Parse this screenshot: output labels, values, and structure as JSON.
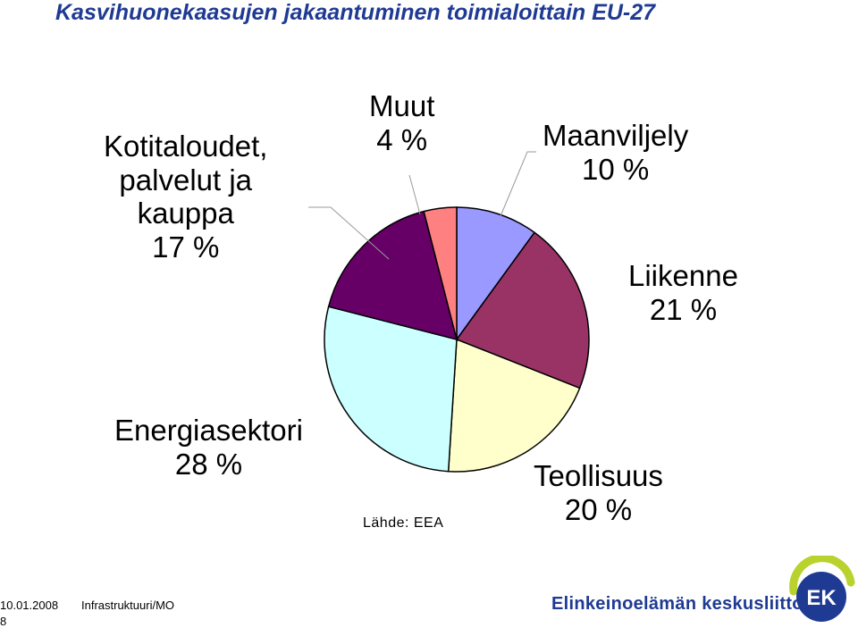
{
  "title": "Kasvihuonekaasujen jakaantuminen toimialoittain EU-27",
  "source": "Lähde: EEA",
  "footer": {
    "date": "10.01.2008",
    "department": "Infrastruktuuri/MO",
    "page": "8",
    "organization": "Elinkeinoelämän keskusliitto",
    "logo_text": "EK"
  },
  "chart_data": {
    "type": "pie",
    "slices": [
      {
        "name": "Maanviljely",
        "value": 10,
        "value_label": "10 %",
        "color": "#9999ff"
      },
      {
        "name": "Liikenne",
        "value": 21,
        "value_label": "21 %",
        "color": "#993366"
      },
      {
        "name": "Teollisuus",
        "value": 20,
        "value_label": "20 %",
        "color": "#ffffcc"
      },
      {
        "name": "Energiasektori",
        "value": 28,
        "value_label": "28 %",
        "color": "#ccffff"
      },
      {
        "name": "Kotitaloudet, palvelut ja kauppa",
        "value": 17,
        "value_label": "17 %",
        "color": "#660066"
      },
      {
        "name": "Muut",
        "value": 4,
        "value_label": "4 %",
        "color": "#ff8080"
      }
    ],
    "label_lines": [
      [
        "Maanviljely",
        "10 %"
      ],
      [
        "Liikenne",
        "21 %"
      ],
      [
        "Teollisuus",
        "20 %"
      ],
      [
        "Energiasektori",
        "28 %"
      ],
      [
        "Kotitaloudet,",
        "palvelut ja",
        "kauppa",
        "17 %"
      ],
      [
        "Muut",
        "4 %"
      ]
    ]
  }
}
